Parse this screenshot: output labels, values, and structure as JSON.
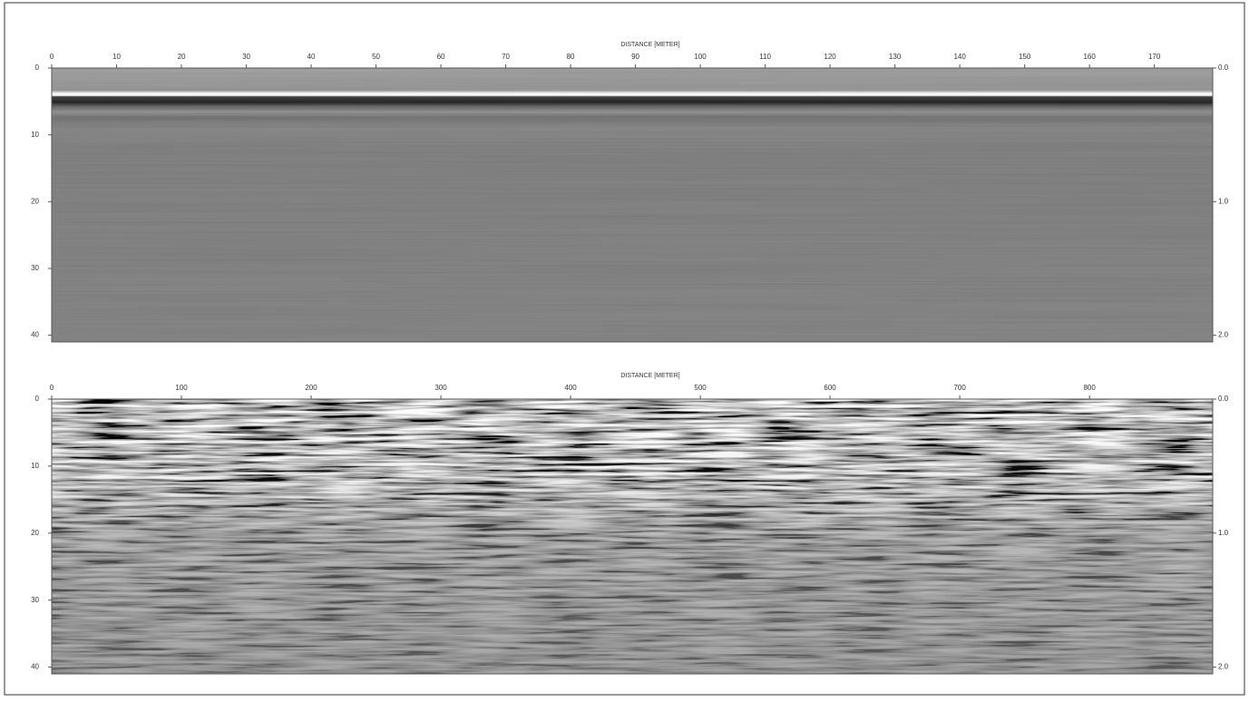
{
  "chart_data": [
    {
      "type": "radargram",
      "x_label": "DISTANCE [METER]",
      "xlim": [
        0,
        179
      ],
      "xticks": [
        0,
        10,
        20,
        30,
        40,
        50,
        60,
        70,
        80,
        90,
        100,
        110,
        120,
        130,
        140,
        150,
        160,
        170
      ],
      "ylim": [
        0,
        41
      ],
      "yticks": [
        0,
        10,
        20,
        30,
        40
      ],
      "y2lim": [
        0,
        2.05
      ],
      "y2ticks": [
        {
          "value": 0,
          "label": "0.0"
        },
        {
          "value": 1,
          "label": "1.0"
        },
        {
          "value": 2,
          "label": "2.0"
        }
      ]
    },
    {
      "type": "radargram",
      "x_label": "DISTANCE [METER]",
      "xlim": [
        0,
        895
      ],
      "xticks": [
        0,
        100,
        200,
        300,
        400,
        500,
        600,
        700,
        800
      ],
      "ylim": [
        0,
        41
      ],
      "yticks": [
        0,
        10,
        20,
        30,
        40
      ],
      "y2lim": [
        0,
        2.05
      ],
      "y2ticks": [
        {
          "value": 0,
          "label": "0.0"
        },
        {
          "value": 1,
          "label": "1.0"
        },
        {
          "value": 2,
          "label": "2.0"
        }
      ]
    }
  ]
}
